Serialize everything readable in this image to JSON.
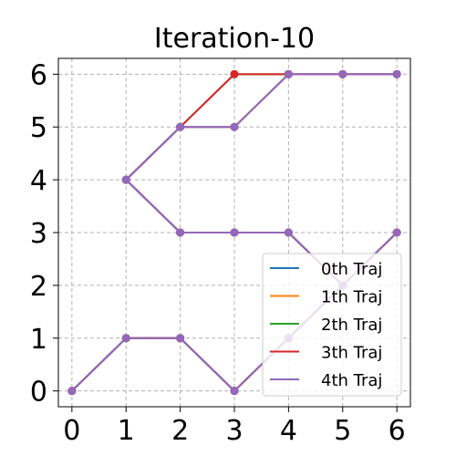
{
  "chart_data": {
    "type": "line",
    "title": "Iteration-10",
    "xlabel": "",
    "ylabel": "",
    "xlim": [
      -0.25,
      6.25
    ],
    "ylim": [
      -0.3,
      6.3
    ],
    "xticks": [
      0,
      1,
      2,
      3,
      4,
      5,
      6
    ],
    "yticks": [
      0,
      1,
      2,
      3,
      4,
      5,
      6
    ],
    "grid": true,
    "legend_position": "lower-right",
    "series": [
      {
        "name": "0th Traj",
        "color": "#1f77b4",
        "segments": [
          [
            [
              0,
              0
            ],
            [
              1,
              1
            ],
            [
              2,
              1
            ],
            [
              3,
              0
            ],
            [
              4,
              1
            ],
            [
              5,
              2
            ],
            [
              6,
              3
            ]
          ],
          [
            [
              1,
              4
            ],
            [
              2,
              3
            ],
            [
              3,
              3
            ],
            [
              4,
              3
            ],
            [
              5,
              2
            ]
          ],
          [
            [
              1,
              4
            ],
            [
              2,
              5
            ],
            [
              3,
              5
            ],
            [
              4,
              6
            ],
            [
              5,
              6
            ],
            [
              6,
              6
            ]
          ]
        ]
      },
      {
        "name": "1th Traj",
        "color": "#ff7f0e",
        "segments": [
          [
            [
              0,
              0
            ],
            [
              1,
              1
            ],
            [
              2,
              1
            ],
            [
              3,
              0
            ],
            [
              4,
              1
            ],
            [
              5,
              2
            ],
            [
              6,
              3
            ]
          ],
          [
            [
              1,
              4
            ],
            [
              2,
              3
            ],
            [
              3,
              3
            ],
            [
              4,
              3
            ],
            [
              5,
              2
            ]
          ],
          [
            [
              1,
              4
            ],
            [
              2,
              5
            ],
            [
              3,
              5
            ],
            [
              4,
              6
            ],
            [
              5,
              6
            ],
            [
              6,
              6
            ]
          ]
        ]
      },
      {
        "name": "2th Traj",
        "color": "#2ca02c",
        "segments": [
          [
            [
              0,
              0
            ],
            [
              1,
              1
            ],
            [
              2,
              1
            ],
            [
              3,
              0
            ],
            [
              4,
              1
            ],
            [
              5,
              2
            ],
            [
              6,
              3
            ]
          ],
          [
            [
              1,
              4
            ],
            [
              2,
              3
            ],
            [
              3,
              3
            ],
            [
              4,
              3
            ],
            [
              5,
              2
            ]
          ],
          [
            [
              1,
              4
            ],
            [
              2,
              5
            ],
            [
              3,
              6
            ],
            [
              4,
              6
            ],
            [
              5,
              6
            ],
            [
              6,
              6
            ]
          ]
        ]
      },
      {
        "name": "3th Traj",
        "color": "#d62728",
        "segments": [
          [
            [
              0,
              0
            ],
            [
              1,
              1
            ],
            [
              2,
              1
            ],
            [
              3,
              0
            ],
            [
              4,
              1
            ],
            [
              5,
              2
            ],
            [
              6,
              3
            ]
          ],
          [
            [
              1,
              4
            ],
            [
              2,
              3
            ],
            [
              3,
              3
            ],
            [
              4,
              3
            ],
            [
              5,
              2
            ]
          ],
          [
            [
              1,
              4
            ],
            [
              2,
              5
            ],
            [
              3,
              6
            ],
            [
              4,
              6
            ],
            [
              5,
              6
            ],
            [
              6,
              6
            ]
          ]
        ]
      },
      {
        "name": "4th Traj",
        "color": "#9467bd",
        "segments": [
          [
            [
              0,
              0
            ],
            [
              1,
              1
            ],
            [
              2,
              1
            ],
            [
              3,
              0
            ],
            [
              4,
              1
            ],
            [
              5,
              2
            ],
            [
              6,
              3
            ]
          ],
          [
            [
              1,
              4
            ],
            [
              2,
              3
            ],
            [
              3,
              3
            ],
            [
              4,
              3
            ],
            [
              5,
              2
            ]
          ],
          [
            [
              1,
              4
            ],
            [
              2,
              5
            ],
            [
              3,
              5
            ],
            [
              4,
              6
            ],
            [
              5,
              6
            ],
            [
              6,
              6
            ]
          ]
        ]
      }
    ]
  }
}
